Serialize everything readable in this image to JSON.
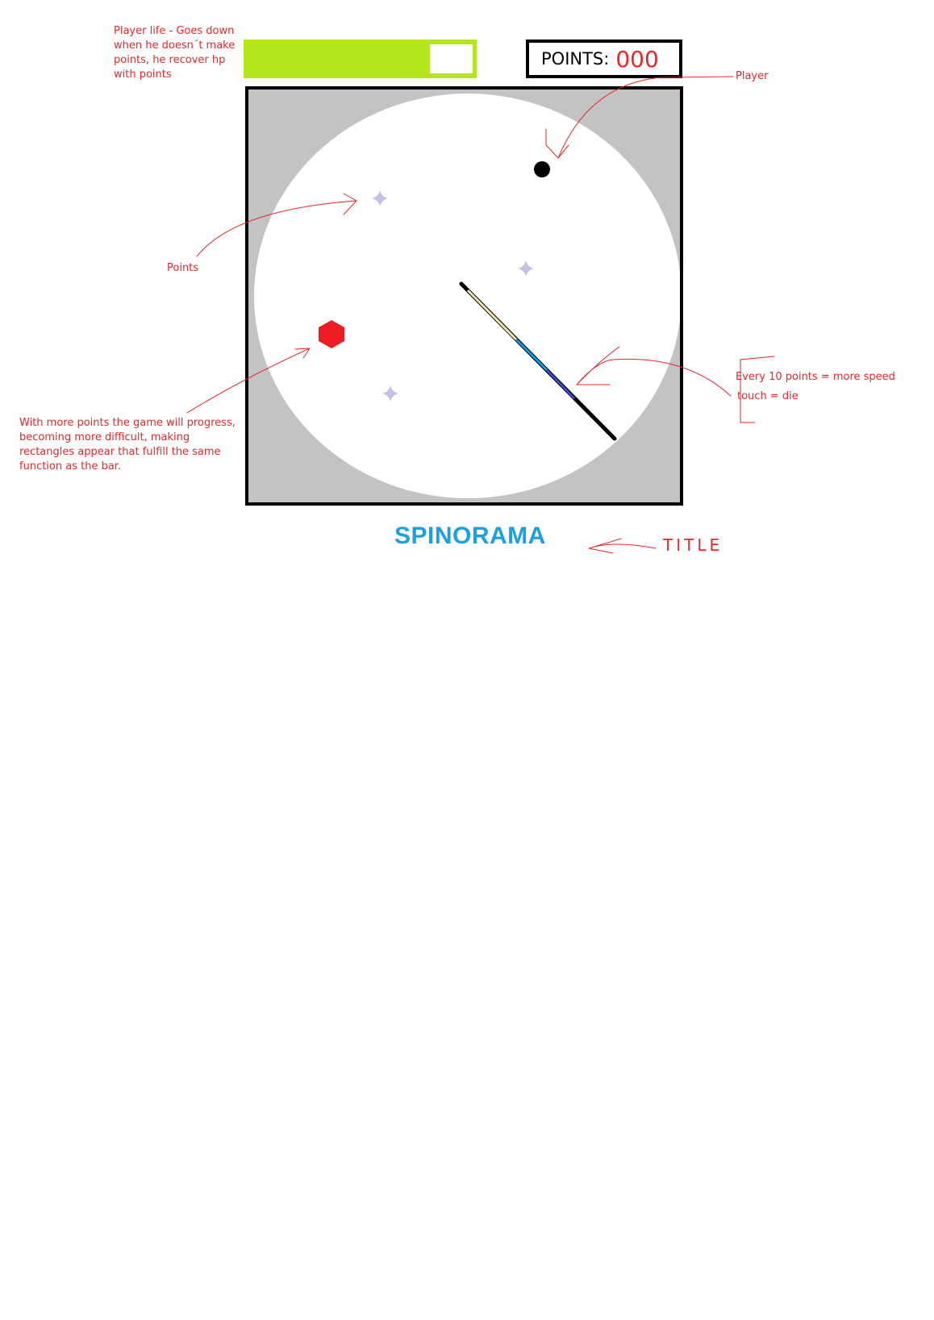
{
  "hud": {
    "points_label": "POINTS:",
    "points_value": "000",
    "life_fraction": 0.81
  },
  "game": {
    "title": "SPINORAMA"
  },
  "annotations": {
    "life": "Player life - Goes down when he doesn´t make points, he recover hp with points",
    "player": "Player",
    "points": "Points",
    "progress": "With more points the game will progress, becoming more difficult, making rectangles appear that fulfill the same function as the bar.",
    "speed": "Every 10 points = more speed",
    "touch": "touch = die",
    "title": "TITLE"
  },
  "colors": {
    "annotation": "#e8262b",
    "life_bar": "#b5e61d",
    "arena_bg": "#c3c3c3",
    "title": "#1e9fde",
    "point_star": "#c8bfe7",
    "enemy": "#ed1c24",
    "player": "#000000"
  },
  "icons": {
    "point": "four-point-star-icon",
    "enemy": "hexagon-icon",
    "player": "circle-icon"
  }
}
